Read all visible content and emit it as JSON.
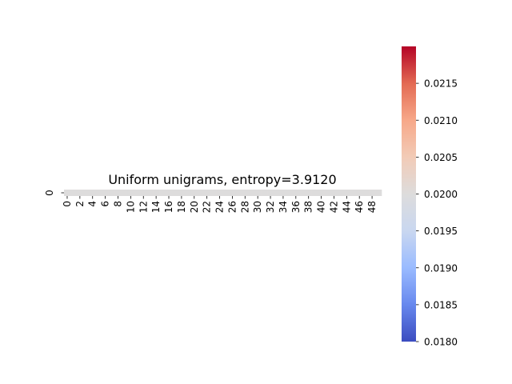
{
  "chart_data": {
    "type": "heatmap",
    "title": "Uniform unigrams, entropy=3.9120",
    "rows": [
      "0"
    ],
    "columns": 50,
    "x_tick_labels": [
      "0",
      "2",
      "4",
      "6",
      "8",
      "10",
      "12",
      "14",
      "16",
      "18",
      "20",
      "22",
      "24",
      "26",
      "28",
      "30",
      "32",
      "34",
      "36",
      "38",
      "40",
      "42",
      "44",
      "46",
      "48"
    ],
    "y_tick_labels": [
      "0"
    ],
    "values": [
      [
        0.02,
        0.02,
        0.02,
        0.02,
        0.02,
        0.02,
        0.02,
        0.02,
        0.02,
        0.02,
        0.02,
        0.02,
        0.02,
        0.02,
        0.02,
        0.02,
        0.02,
        0.02,
        0.02,
        0.02,
        0.02,
        0.02,
        0.02,
        0.02,
        0.02,
        0.02,
        0.02,
        0.02,
        0.02,
        0.02,
        0.02,
        0.02,
        0.02,
        0.02,
        0.02,
        0.02,
        0.02,
        0.02,
        0.02,
        0.02,
        0.02,
        0.02,
        0.02,
        0.02,
        0.02,
        0.02,
        0.02,
        0.02,
        0.02,
        0.02
      ]
    ],
    "colormap": "coolwarm",
    "colorbar": {
      "min": 0.018,
      "max": 0.022,
      "ticks": [
        "0.0180",
        "0.0185",
        "0.0190",
        "0.0195",
        "0.0200",
        "0.0205",
        "0.0210",
        "0.0215"
      ],
      "colors": [
        "#3b4cc0",
        "#6788ee",
        "#9abbff",
        "#c9d7f0",
        "#dddcdc",
        "#f2cbb7",
        "#f7a889",
        "#e36a53",
        "#b40426"
      ]
    }
  }
}
